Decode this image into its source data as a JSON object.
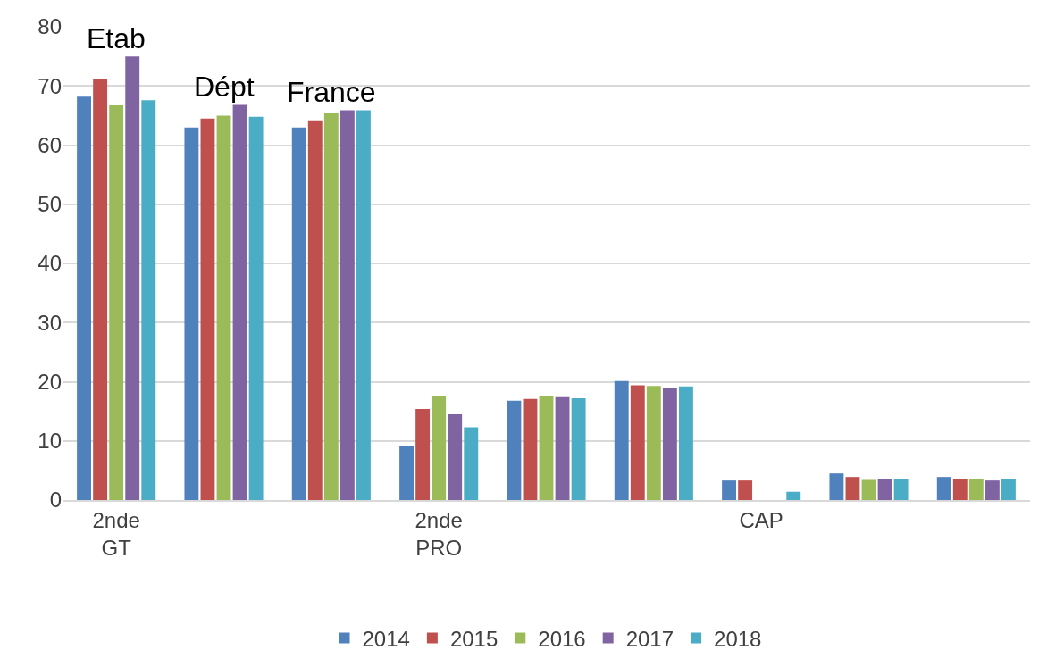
{
  "chart_data": {
    "type": "bar",
    "categories": [
      "2nde\nGT",
      null,
      null,
      "2nde\nPRO",
      null,
      null,
      "CAP",
      null,
      null
    ],
    "series": [
      {
        "name": "2014",
        "color": "#4f81bd",
        "values": [
          68.2,
          63.0,
          63.0,
          9.1,
          16.8,
          20.1,
          3.3,
          4.5,
          3.9
        ]
      },
      {
        "name": "2015",
        "color": "#c0504d",
        "values": [
          71.2,
          64.5,
          64.2,
          15.4,
          17.1,
          19.4,
          3.3,
          3.9,
          3.6
        ]
      },
      {
        "name": "2016",
        "color": "#9bbb59",
        "values": [
          66.7,
          65.0,
          65.5,
          17.5,
          17.5,
          19.3,
          null,
          3.4,
          3.6
        ]
      },
      {
        "name": "2017",
        "color": "#8064a2",
        "values": [
          75.0,
          66.8,
          65.9,
          14.5,
          17.4,
          18.9,
          null,
          3.5,
          3.3
        ]
      },
      {
        "name": "2018",
        "color": "#4bacc6",
        "values": [
          67.6,
          64.8,
          65.9,
          12.3,
          17.2,
          19.2,
          1.4,
          3.6,
          3.6
        ]
      }
    ],
    "annotations": [
      "Etab",
      "Dépt",
      "France"
    ],
    "ylim": [
      0,
      80
    ],
    "yticks": [
      0,
      10,
      20,
      30,
      40,
      50,
      60,
      70,
      80
    ],
    "grid": "y",
    "legend": "bottom"
  }
}
